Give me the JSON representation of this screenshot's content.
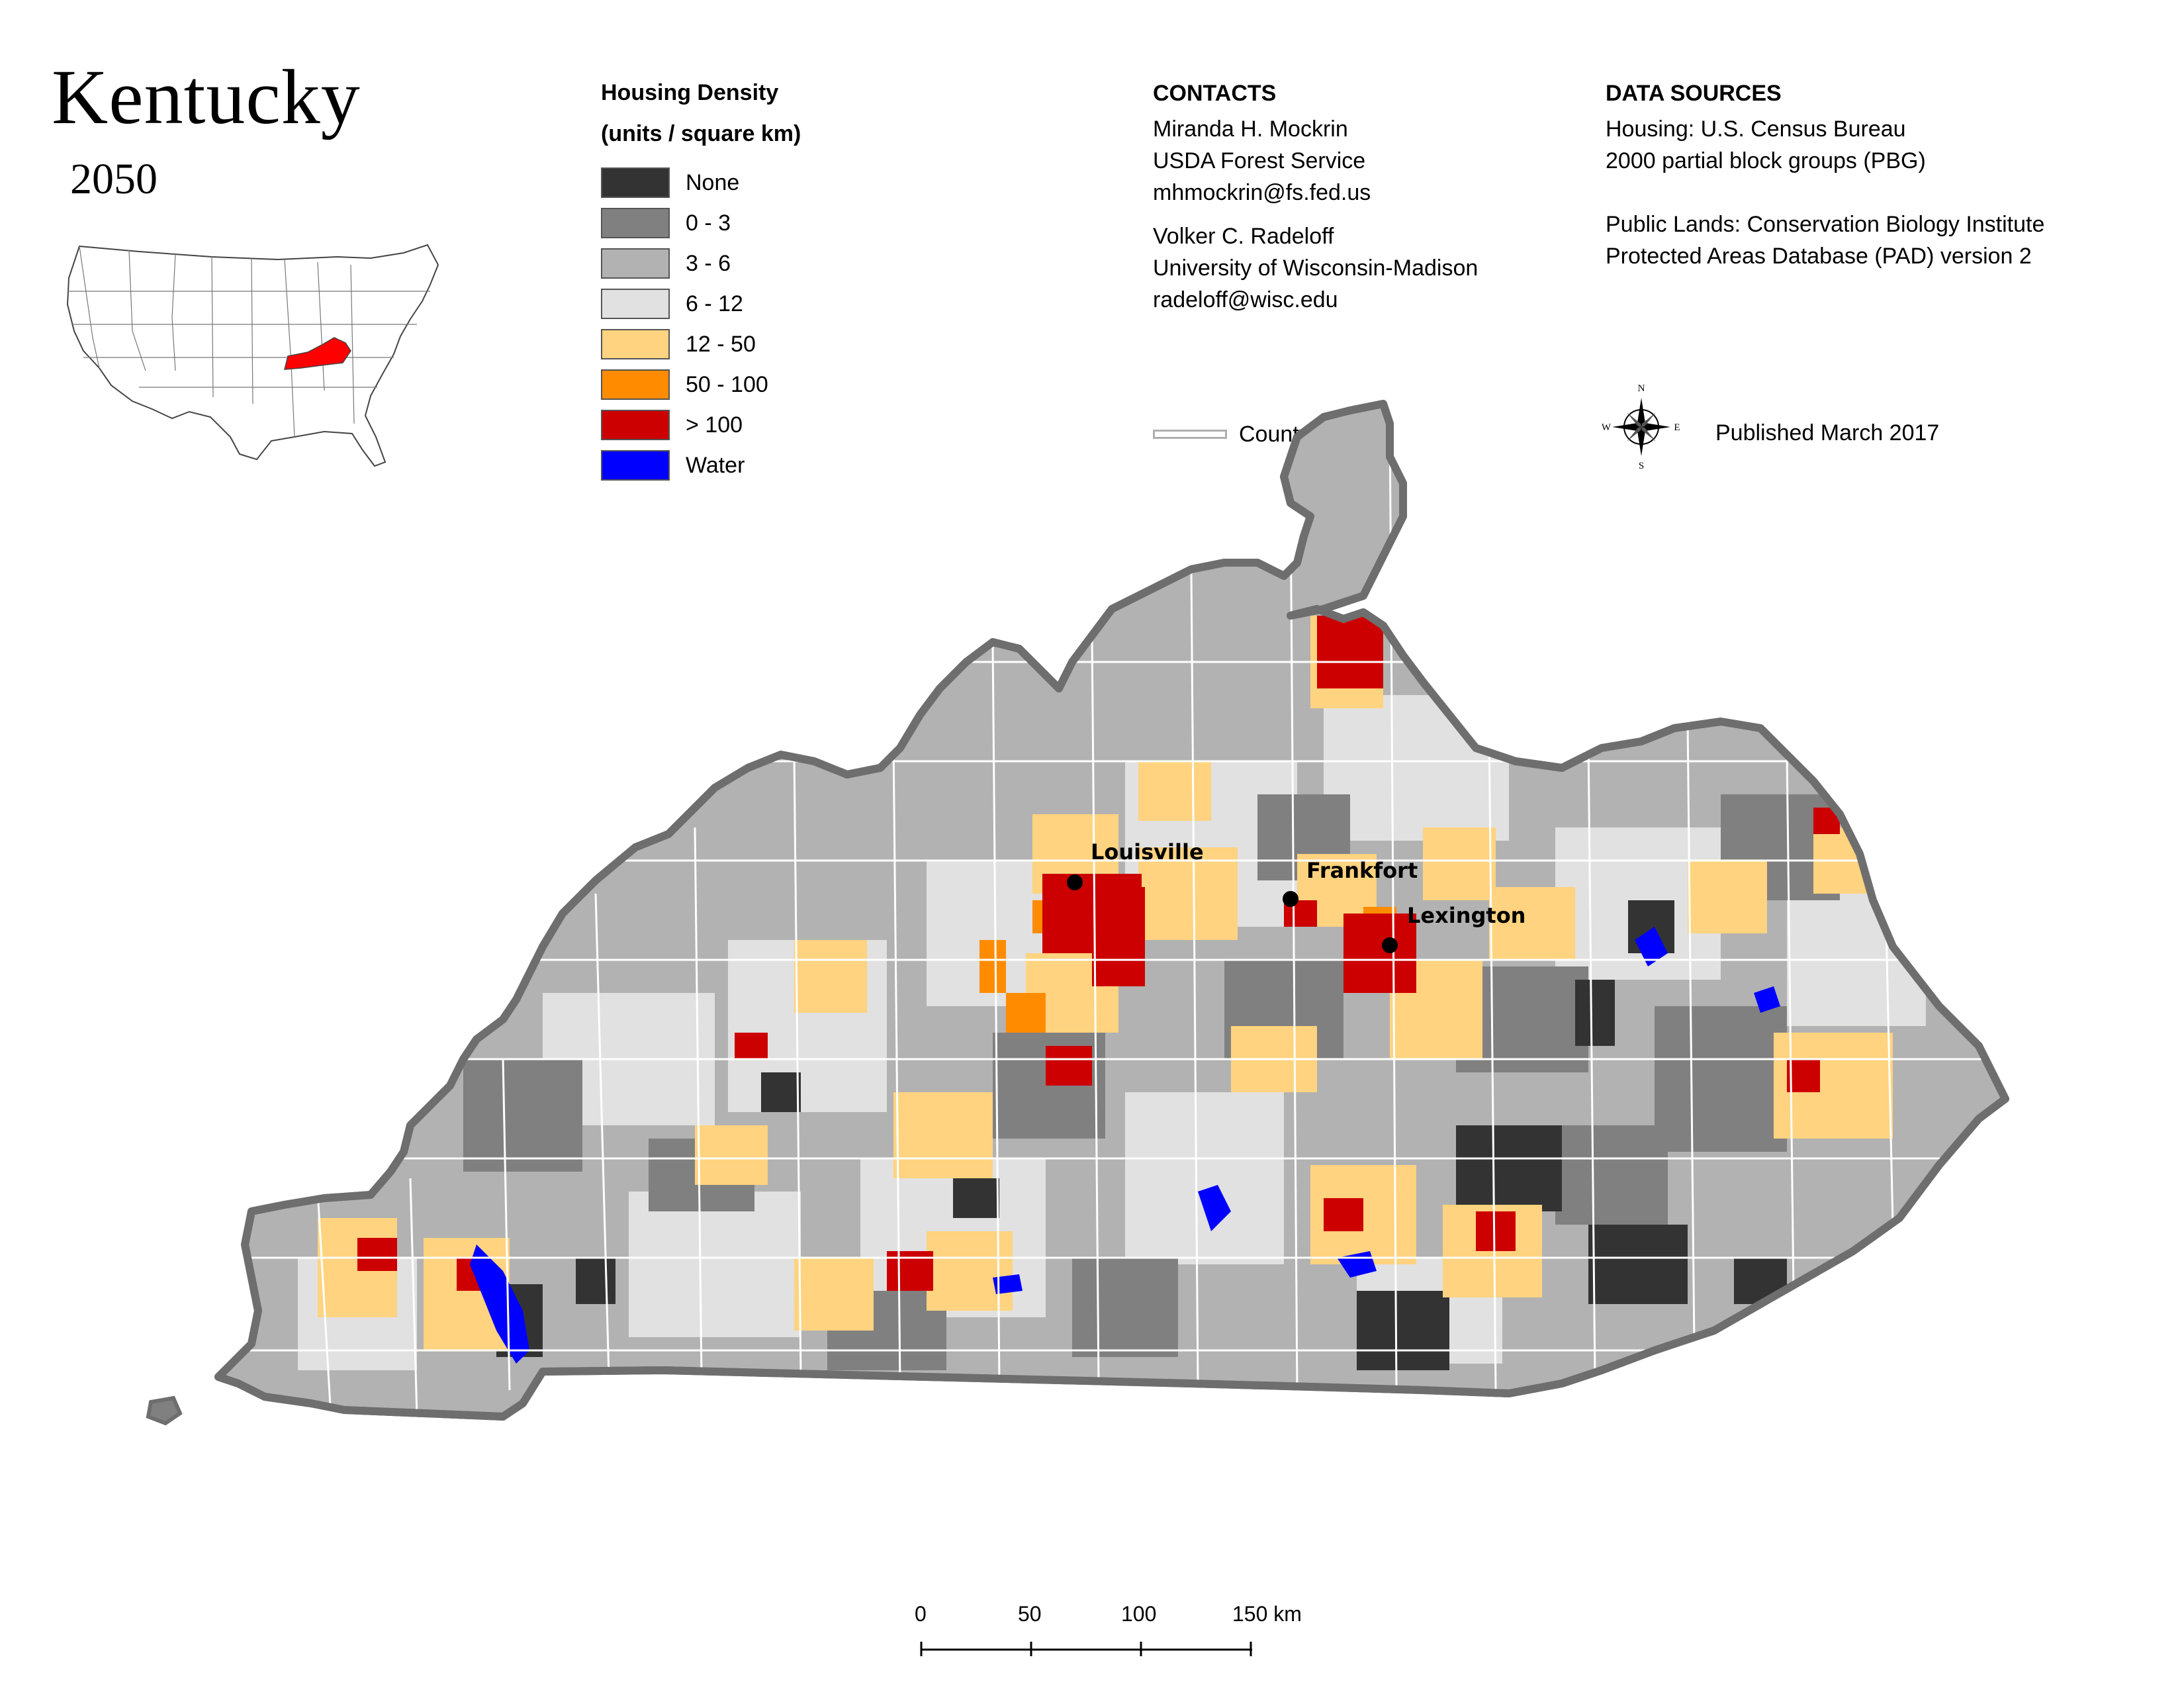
{
  "title": "Kentucky",
  "year": "2050",
  "legend": {
    "title_line1": "Housing Density",
    "title_line2": "(units / square km)",
    "items": [
      {
        "label": "None",
        "color": "#333333"
      },
      {
        "label": "0 - 3",
        "color": "#808080"
      },
      {
        "label": "3 - 6",
        "color": "#b2b2b2"
      },
      {
        "label": "6 - 12",
        "color": "#e1e1e1"
      },
      {
        "label": "12 - 50",
        "color": "#ffd37f"
      },
      {
        "label": "50 - 100",
        "color": "#ff8c00"
      },
      {
        "label": "> 100",
        "color": "#cc0000"
      },
      {
        "label": "Water",
        "color": "#0000ff"
      }
    ]
  },
  "contacts": {
    "heading": "CONTACTS",
    "person1": [
      "Miranda H. Mockrin",
      "USDA Forest Service",
      "mhmockrin@fs.fed.us"
    ],
    "person2": [
      "Volker C. Radeloff",
      "University of Wisconsin-Madison",
      "radeloff@wisc.edu"
    ]
  },
  "data_sources": {
    "heading": "DATA SOURCES",
    "housing": [
      "Housing: U.S. Census Bureau",
      "2000 partial block groups (PBG)"
    ],
    "public_lands": [
      "Public Lands: Conservation Biology Institute",
      "Protected Areas Database (PAD) version 2"
    ]
  },
  "county_border_label": "County border",
  "published": "Published March 2017",
  "compass": {
    "n": "N",
    "s": "S",
    "e": "E",
    "w": "W"
  },
  "cities": [
    {
      "name": "Louisville"
    },
    {
      "name": "Frankfort"
    },
    {
      "name": "Lexington"
    }
  ],
  "scale_bar": {
    "ticks": [
      "0",
      "50",
      "100",
      "150 km"
    ]
  },
  "colors": {
    "state_outline": "#6e6e6e",
    "county_border": "#ffffff",
    "inset_highlight": "#ff0000"
  }
}
